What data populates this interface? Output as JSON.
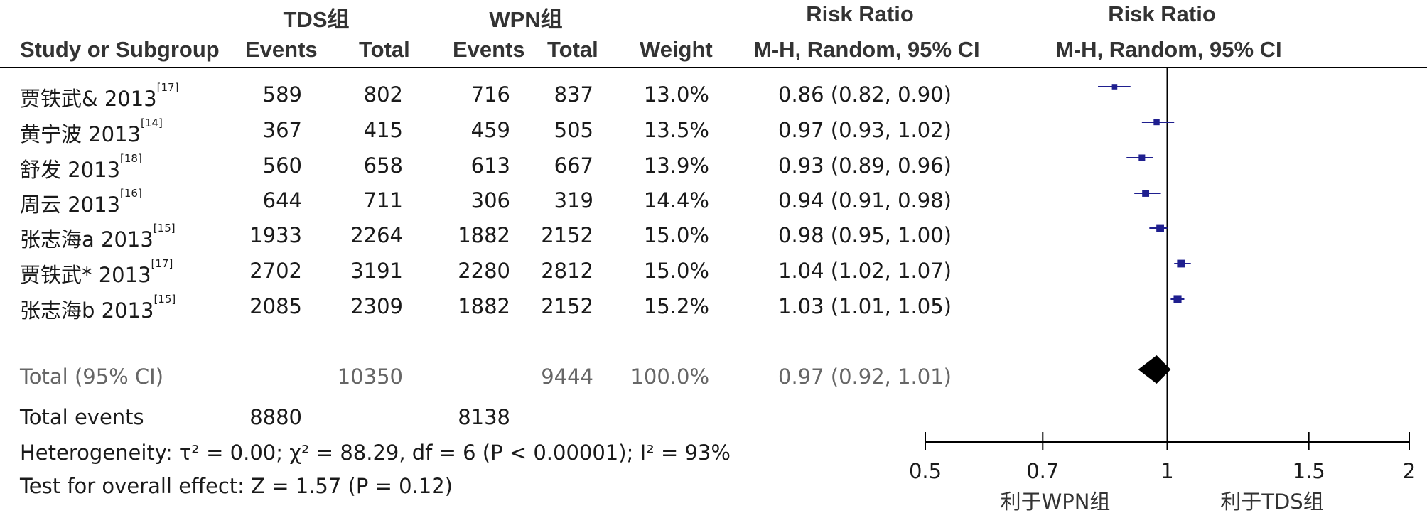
{
  "headers": {
    "group1": "TDS组",
    "group2": "WPN组",
    "rr_title_table": "Risk Ratio",
    "rr_title_plot": "Risk Ratio",
    "study": "Study or Subgroup",
    "events1": "Events",
    "total1": "Total",
    "events2": "Events",
    "total2": "Total",
    "weight": "Weight",
    "method_table": "M-H, Random, 95% CI",
    "method_plot": "M-H, Random, 95% CI"
  },
  "studies": [
    {
      "name": "贾铁武& 2013",
      "ref": "[17]",
      "e1": "589",
      "t1": "802",
      "e2": "716",
      "t2": "837",
      "weight": "13.0%",
      "ci_text": "0.86 (0.82, 0.90)"
    },
    {
      "name": "黄宁波 2013",
      "ref": "[14]",
      "e1": "367",
      "t1": "415",
      "e2": "459",
      "t2": "505",
      "weight": "13.5%",
      "ci_text": "0.97 (0.93, 1.02)"
    },
    {
      "name": "舒发 2013",
      "ref": "[18]",
      "e1": "560",
      "t1": "658",
      "e2": "613",
      "t2": "667",
      "weight": "13.9%",
      "ci_text": "0.93 (0.89, 0.96)"
    },
    {
      "name": "周云 2013",
      "ref": "[16]",
      "e1": "644",
      "t1": "711",
      "e2": "306",
      "t2": "319",
      "weight": "14.4%",
      "ci_text": "0.94 (0.91, 0.98)"
    },
    {
      "name": "张志海a 2013",
      "ref": "[15]",
      "e1": "1933",
      "t1": "2264",
      "e2": "1882",
      "t2": "2152",
      "weight": "15.0%",
      "ci_text": "0.98 (0.95, 1.00)"
    },
    {
      "name": "贾铁武* 2013",
      "ref": "[17]",
      "e1": "2702",
      "t1": "3191",
      "e2": "2280",
      "t2": "2812",
      "weight": "15.0%",
      "ci_text": "1.04 (1.02, 1.07)"
    },
    {
      "name": "张志海b 2013",
      "ref": "[15]",
      "e1": "2085",
      "t1": "2309",
      "e2": "1882",
      "t2": "2152",
      "weight": "15.2%",
      "ci_text": "1.03 (1.01, 1.05)"
    }
  ],
  "total": {
    "label": "Total (95% CI)",
    "t1": "10350",
    "t2": "9444",
    "weight": "100.0%",
    "ci_text": "0.97 (0.92, 1.01)"
  },
  "total_events": {
    "label": "Total events",
    "e1": "8880",
    "e2": "8138"
  },
  "heterogeneity": "Heterogeneity: τ² = 0.00; χ² = 88.29, df = 6 (P < 0.00001); I² = 93%",
  "overall_effect": "Test for overall effect: Z = 1.57 (P = 0.12)",
  "favours": {
    "left": "利于WPN组",
    "right": "利于TDS组"
  },
  "chart_data": {
    "type": "forest",
    "title": "Risk Ratio",
    "subtitle": "M-H, Random, 95% CI",
    "xlim": [
      0.5,
      2
    ],
    "x_ticks": [
      0.5,
      0.7,
      1,
      1.5,
      2
    ],
    "x_tick_labels": [
      "0.5",
      "0.7",
      "1",
      "1.5",
      "2"
    ],
    "scale": "log",
    "reference_line": 1,
    "studies": [
      {
        "estimate": 0.86,
        "lower": 0.82,
        "upper": 0.9,
        "weight": 13.0
      },
      {
        "estimate": 0.97,
        "lower": 0.93,
        "upper": 1.02,
        "weight": 13.5
      },
      {
        "estimate": 0.93,
        "lower": 0.89,
        "upper": 0.96,
        "weight": 13.9
      },
      {
        "estimate": 0.94,
        "lower": 0.91,
        "upper": 0.98,
        "weight": 14.4
      },
      {
        "estimate": 0.98,
        "lower": 0.95,
        "upper": 1.0,
        "weight": 15.0
      },
      {
        "estimate": 1.04,
        "lower": 1.02,
        "upper": 1.07,
        "weight": 15.0
      },
      {
        "estimate": 1.03,
        "lower": 1.01,
        "upper": 1.05,
        "weight": 15.2
      }
    ],
    "pooled": {
      "estimate": 0.97,
      "lower": 0.92,
      "upper": 1.01
    },
    "marker_color": "#1f1f8f",
    "diamond_color": "#000000"
  }
}
